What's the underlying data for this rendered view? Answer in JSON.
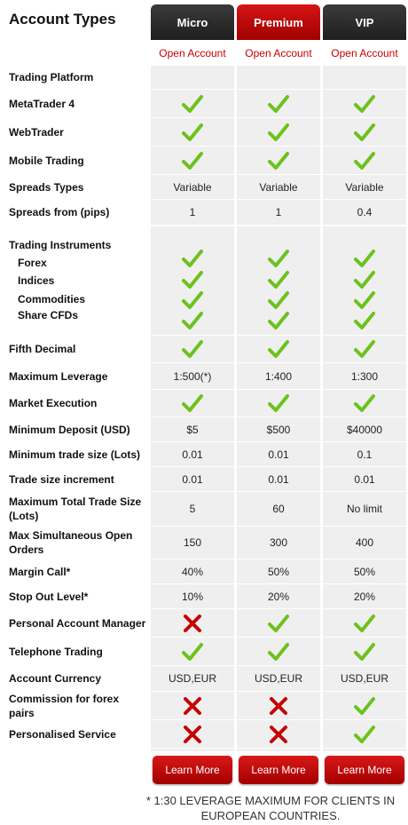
{
  "title": "Account Types",
  "columns": [
    {
      "name": "Micro",
      "open": "Open Account",
      "learn": "Learn More"
    },
    {
      "name": "Premium",
      "open": "Open Account",
      "learn": "Learn More"
    },
    {
      "name": "VIP",
      "open": "Open Account",
      "learn": "Learn More"
    }
  ],
  "rows": {
    "trading_platform": "Trading Platform",
    "mt4": "MetaTrader 4",
    "webtrader": "WebTrader",
    "mobile": "Mobile Trading",
    "spreads_types": {
      "label": "Spreads Types",
      "values": [
        "Variable",
        "Variable",
        "Variable"
      ]
    },
    "spreads_from": {
      "label": "Spreads from (pips)",
      "values": [
        "1",
        "1",
        "0.4"
      ]
    },
    "instruments": {
      "label": "Trading Instruments",
      "items": [
        "Forex",
        "Indices",
        "Commodities",
        "Share CFDs"
      ]
    },
    "fifth_decimal": "Fifth Decimal",
    "max_leverage": {
      "label": "Maximum Leverage",
      "values": [
        "1:500(*)",
        "1:400",
        "1:300"
      ]
    },
    "market_execution": "Market Execution",
    "min_deposit": {
      "label": "Minimum Deposit (USD)",
      "values": [
        "$5",
        "$500",
        "$40000"
      ]
    },
    "min_trade": {
      "label": "Minimum trade size (Lots)",
      "values": [
        "0.01",
        "0.01",
        "0.1"
      ]
    },
    "trade_increment": {
      "label": "Trade size increment",
      "values": [
        "0.01",
        "0.01",
        "0.01"
      ]
    },
    "max_total": {
      "label": "Maximum Total Trade Size (Lots)",
      "values": [
        "5",
        "60",
        "No limit"
      ]
    },
    "max_orders": {
      "label": "Max Simultaneous Open Orders",
      "values": [
        "150",
        "300",
        "400"
      ]
    },
    "margin_call": {
      "label": "Margin Call*",
      "values": [
        "40%",
        "50%",
        "50%"
      ]
    },
    "stop_out": {
      "label": "Stop Out Level*",
      "values": [
        "10%",
        "20%",
        "20%"
      ]
    },
    "account_manager": "Personal Account Manager",
    "telephone": "Telephone Trading",
    "currency": {
      "label": "Account Currency",
      "values": [
        "USD,EUR",
        "USD,EUR",
        "USD,EUR"
      ]
    },
    "commission": "Commission for forex pairs",
    "personalised": "Personalised Service"
  },
  "footnote": "* 1:30 LEVERAGE MAXIMUM FOR CLIENTS IN EUROPEAN COUNTRIES.",
  "colors": {
    "accent": "#c60000",
    "check": "#6cc21d",
    "cross": "#c40000"
  }
}
